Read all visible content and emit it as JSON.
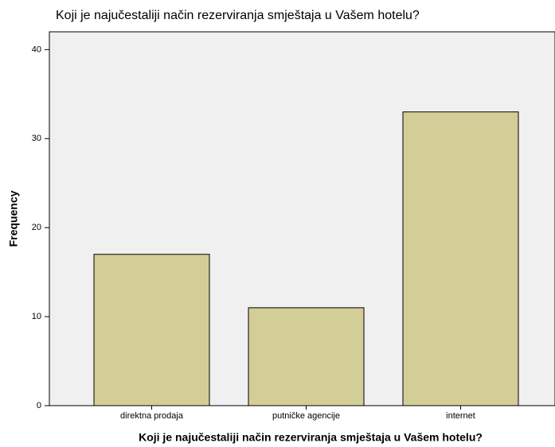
{
  "chart_data": {
    "type": "bar",
    "title": "Koji je najučestaliji način rezerviranja smještaja u Vašem hotelu?",
    "xlabel": "Koji je najučestaliji način rezerviranja smještaja u Vašem hotelu?",
    "ylabel": "Frequency",
    "categories": [
      "direktna prodaja",
      "putničke agencije",
      "internet"
    ],
    "values": [
      17,
      11,
      33
    ],
    "color": "#d3ce97",
    "ylim": [
      0,
      42
    ],
    "yticks": [
      0,
      10,
      20,
      30,
      40
    ],
    "grid": false
  }
}
